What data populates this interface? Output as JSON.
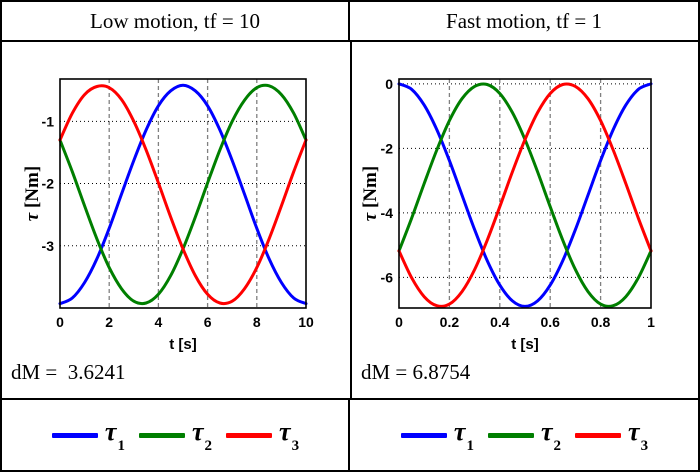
{
  "panels": [
    {
      "title": "Low motion, tf = 10",
      "dM": "dM =  3.6241"
    },
    {
      "title": "Fast motion, tf = 1",
      "dM": "dM = 6.8754"
    }
  ],
  "legend": {
    "items": [
      {
        "label": "τ",
        "sub": "1",
        "color": "#0000FF"
      },
      {
        "label": "τ",
        "sub": "2",
        "color": "#007F00"
      },
      {
        "label": "τ",
        "sub": "3",
        "color": "#FF0000"
      }
    ]
  },
  "style_colors": {
    "curve_blue": "#0000FF",
    "curve_green": "#007F00",
    "curve_red": "#FF0000",
    "frame": "#000000",
    "hgrid": "#000000",
    "vgrid": "#808080"
  },
  "chart_data": [
    {
      "type": "line",
      "title": "Low motion, tf = 10",
      "xlabel": "t [s]",
      "ylabel": "τ [Nm]",
      "xlim": [
        0,
        10
      ],
      "ylim": [
        -4.0,
        -0.32
      ],
      "xticks": [
        0,
        2,
        4,
        6,
        8,
        10
      ],
      "yticks": [
        -1,
        -2,
        -3
      ],
      "grid": true,
      "x": [
        0,
        0.5,
        1,
        1.5,
        2,
        2.5,
        3,
        3.5,
        4,
        4.5,
        5,
        5.5,
        6,
        6.5,
        7,
        7.5,
        8,
        8.5,
        9,
        9.5,
        10
      ],
      "series": [
        {
          "name": "τ1",
          "color": "#0000FF",
          "values": [
            -3.93,
            -3.84,
            -3.59,
            -3.21,
            -2.72,
            -2.17,
            -1.63,
            -1.14,
            -0.75,
            -0.51,
            -0.42,
            -0.51,
            -0.75,
            -1.14,
            -1.63,
            -2.17,
            -2.72,
            -3.21,
            -3.59,
            -3.84,
            -3.93
          ]
        },
        {
          "name": "τ2",
          "color": "#007F00",
          "values": [
            -1.3,
            -1.81,
            -2.36,
            -2.89,
            -3.35,
            -3.69,
            -3.89,
            -3.92,
            -3.78,
            -3.48,
            -3.05,
            -2.54,
            -1.99,
            -1.46,
            -1.0,
            -0.66,
            -0.46,
            -0.43,
            -0.57,
            -0.87,
            -1.3
          ]
        },
        {
          "name": "τ3",
          "color": "#FF0000",
          "values": [
            -1.3,
            -0.87,
            -0.57,
            -0.44,
            -0.46,
            -0.65,
            -1.0,
            -1.46,
            -1.99,
            -2.54,
            -3.05,
            -3.48,
            -3.78,
            -3.92,
            -3.89,
            -3.69,
            -3.35,
            -2.89,
            -2.36,
            -1.81,
            -1.3
          ]
        }
      ],
      "annotation": "dM =  3.6241"
    },
    {
      "type": "line",
      "title": "Fast motion, tf = 1",
      "xlabel": "t [s]",
      "ylabel": "τ [Nm]",
      "xlim": [
        0,
        1
      ],
      "ylim": [
        -6.95,
        0.15
      ],
      "xticks": [
        0,
        0.2,
        0.4,
        0.6,
        0.8,
        1
      ],
      "yticks": [
        0,
        -2,
        -4,
        -6
      ],
      "grid": true,
      "x": [
        0,
        0.05,
        0.1,
        0.15,
        0.2,
        0.25,
        0.3,
        0.35,
        0.4,
        0.45,
        0.5,
        0.55,
        0.6,
        0.65,
        0.7,
        0.75,
        0.8,
        0.85,
        0.9,
        0.95,
        1
      ],
      "series": [
        {
          "name": "τ1",
          "color": "#0000FF",
          "values": [
            0,
            -0.17,
            -0.66,
            -1.42,
            -2.38,
            -3.45,
            -4.52,
            -5.48,
            -6.24,
            -6.73,
            -6.9,
            -6.73,
            -6.24,
            -5.48,
            -4.52,
            -3.45,
            -2.38,
            -1.42,
            -0.66,
            -0.17,
            0
          ]
        },
        {
          "name": "τ2",
          "color": "#007F00",
          "values": [
            -5.18,
            -4.17,
            -3.09,
            -2.05,
            -1.14,
            -0.46,
            -0.08,
            -0.02,
            -0.3,
            -0.89,
            -1.73,
            -2.73,
            -3.81,
            -4.85,
            -5.76,
            -6.44,
            -6.83,
            -6.88,
            -6.6,
            -6.01,
            -5.18
          ]
        },
        {
          "name": "τ3",
          "color": "#FF0000",
          "values": [
            -5.18,
            -6.01,
            -6.6,
            -6.88,
            -6.83,
            -6.44,
            -5.76,
            -4.85,
            -3.81,
            -2.73,
            -1.73,
            -0.89,
            -0.3,
            -0.02,
            -0.08,
            -0.46,
            -1.14,
            -2.05,
            -3.09,
            -4.17,
            -5.18
          ]
        }
      ],
      "annotation": "dM = 6.8754"
    }
  ]
}
